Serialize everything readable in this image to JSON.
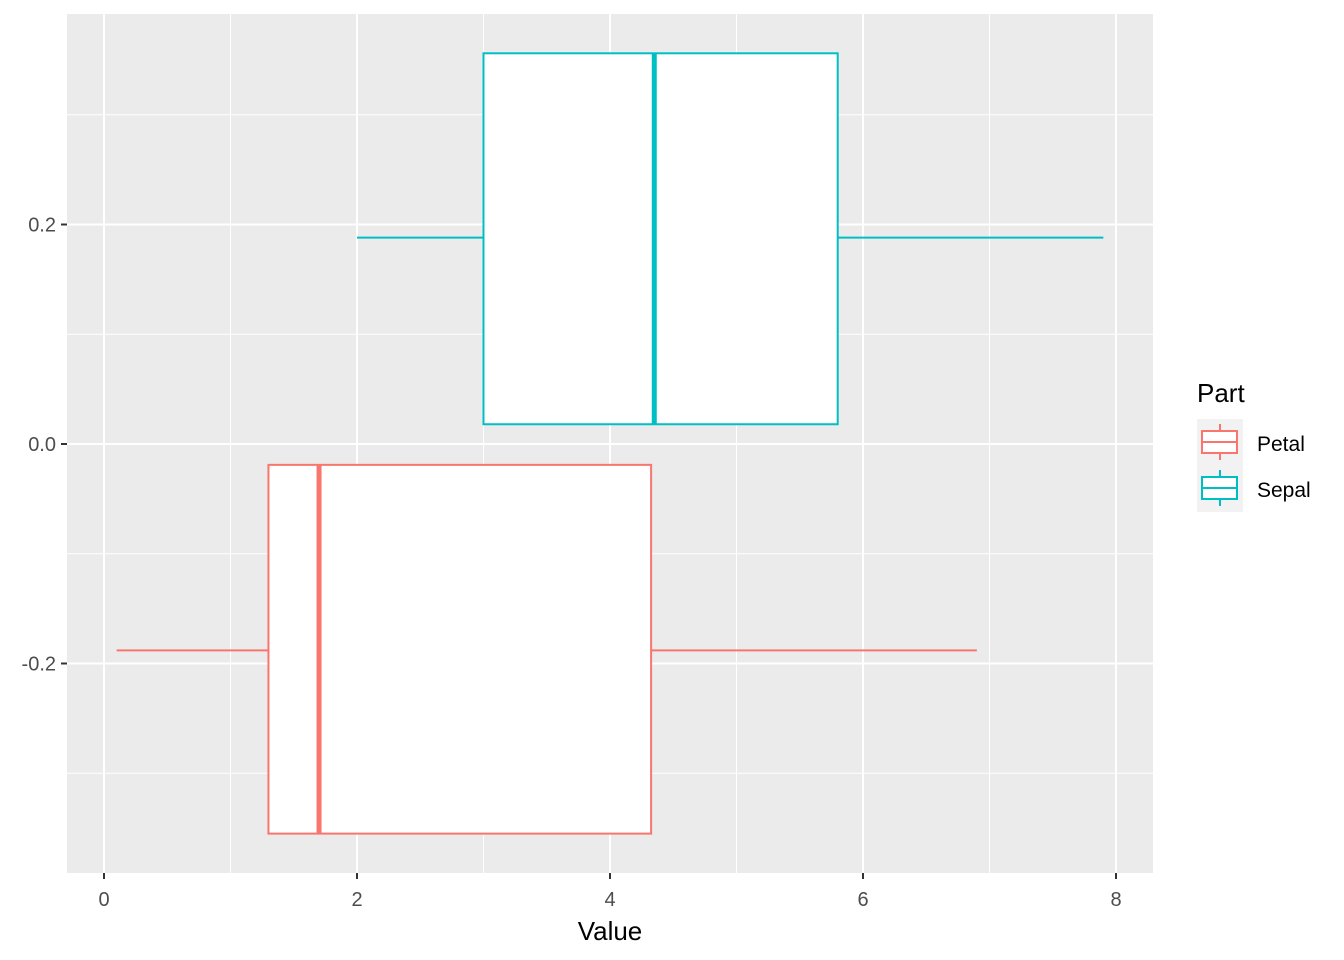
{
  "chart_data": {
    "type": "boxplot",
    "orientation": "horizontal",
    "title": "",
    "xlabel": "Value",
    "ylabel": "",
    "xlim": [
      -0.07,
      8.5
    ],
    "ylim": [
      -0.39,
      0.39
    ],
    "x_ticks": [
      0,
      2,
      4,
      6,
      8
    ],
    "x_tick_labels": [
      "0",
      "2",
      "4",
      "6",
      "8"
    ],
    "y_ticks": [
      -0.2,
      0.0,
      0.2
    ],
    "y_tick_labels": [
      "-0.2",
      "0.0",
      "0.2"
    ],
    "grid": true,
    "legend": {
      "title": "Part",
      "position": "right",
      "entries": [
        "Petal",
        "Sepal"
      ]
    },
    "series": [
      {
        "name": "Petal",
        "color": "#F8766D",
        "min": 0.1,
        "q1": 1.3,
        "median": 1.7,
        "q3": 4.325,
        "max": 6.9,
        "ymin": -0.355,
        "ymax": -0.019,
        "ycenter": -0.188
      },
      {
        "name": "Sepal",
        "color": "#00BFC4",
        "min": 2.0,
        "q1": 3.0,
        "median": 4.35,
        "q3": 5.8,
        "max": 7.9,
        "ymin": 0.018,
        "ymax": 0.356,
        "ycenter": 0.188
      }
    ]
  }
}
